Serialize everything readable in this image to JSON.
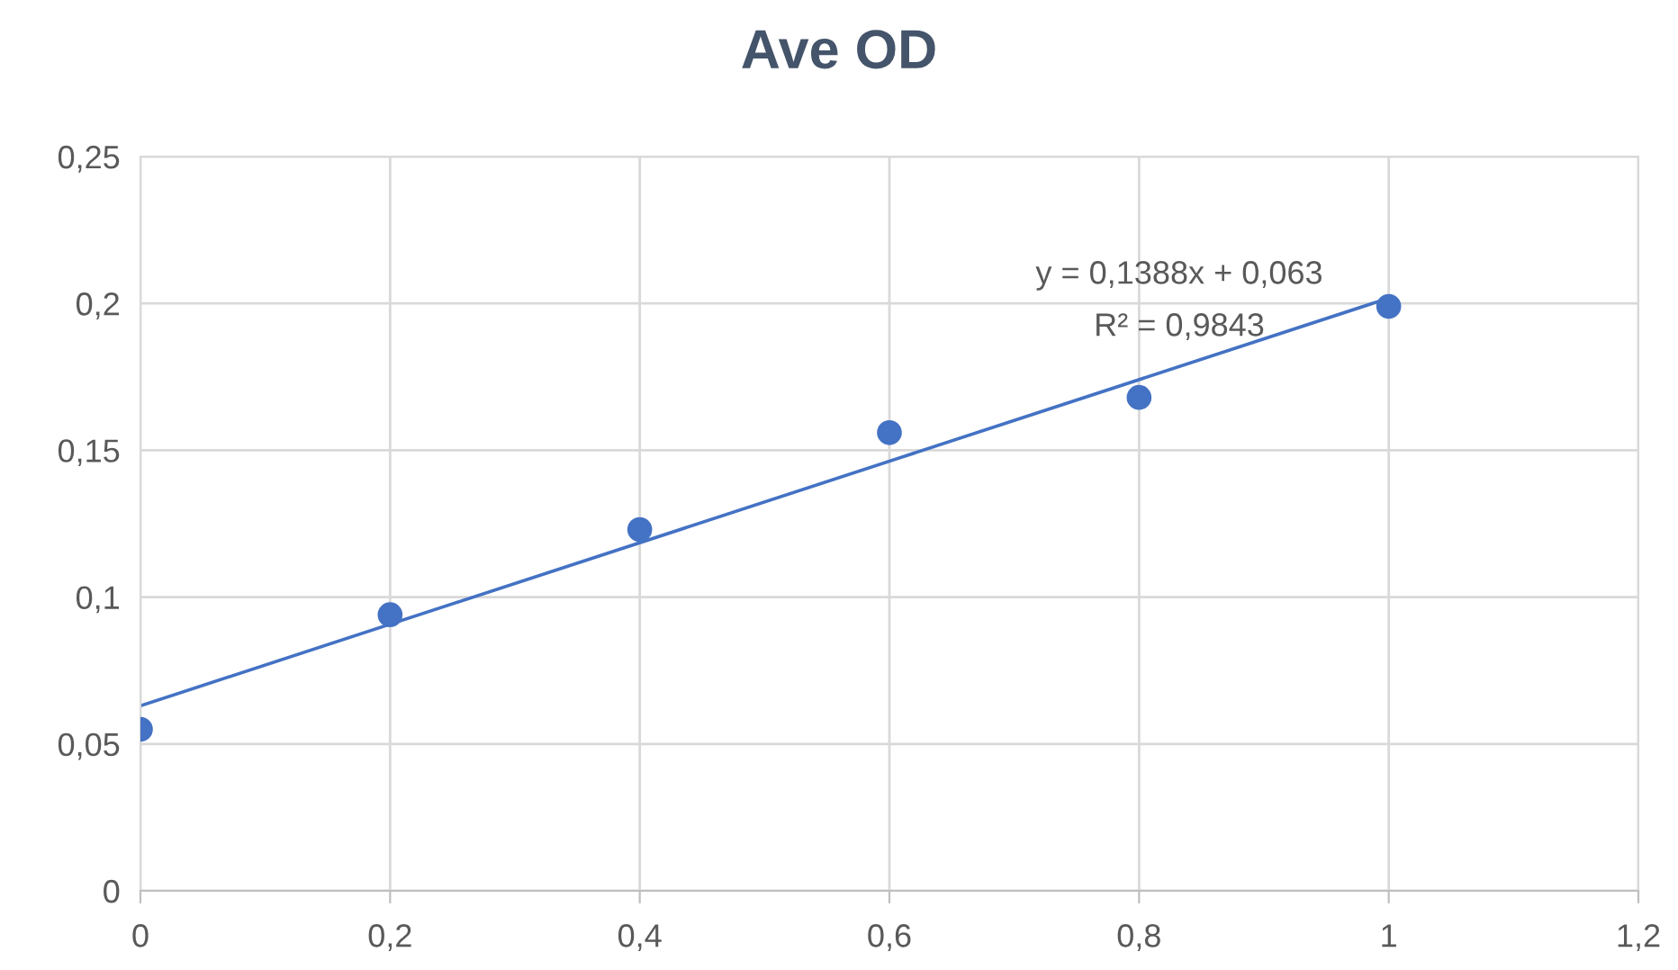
{
  "chart_data": {
    "type": "scatter",
    "title": "Ave OD",
    "series": [
      {
        "color": "#4472c4",
        "marker": "circle",
        "x": [
          0,
          0.2,
          0.4,
          0.6,
          0.8,
          1.0
        ],
        "values": [
          0.055,
          0.094,
          0.123,
          0.156,
          0.168,
          0.199
        ]
      },
      {
        "type": "line",
        "color": "#4472c4",
        "marker": "none",
        "line_style": "solid",
        "x": [
          0,
          1.0
        ],
        "values": [
          0.063,
          0.2018
        ]
      }
    ],
    "xlim": [
      0,
      1.2
    ],
    "xticks": [
      0,
      {
        "value": 0.2,
        "label": "0,2"
      },
      {
        "value": 0.4,
        "label": "0,4"
      },
      {
        "value": 0.6,
        "label": "0,6"
      },
      {
        "value": 0.8,
        "label": "0,8"
      },
      1,
      {
        "value": 1.2,
        "label": "1,2"
      }
    ],
    "ylim": [
      0,
      0.25
    ],
    "yticks": [
      0,
      {
        "value": 0.05,
        "label": "0,05"
      },
      {
        "value": 0.1,
        "label": "0,1"
      },
      {
        "value": 0.15,
        "label": "0,15"
      },
      {
        "value": 0.2,
        "label": "0,2"
      },
      {
        "value": 0.25,
        "label": "0,25"
      }
    ],
    "grid": true,
    "annotations": [
      "y = 0,1388x + 0,063",
      "R² = 0,9843"
    ]
  }
}
